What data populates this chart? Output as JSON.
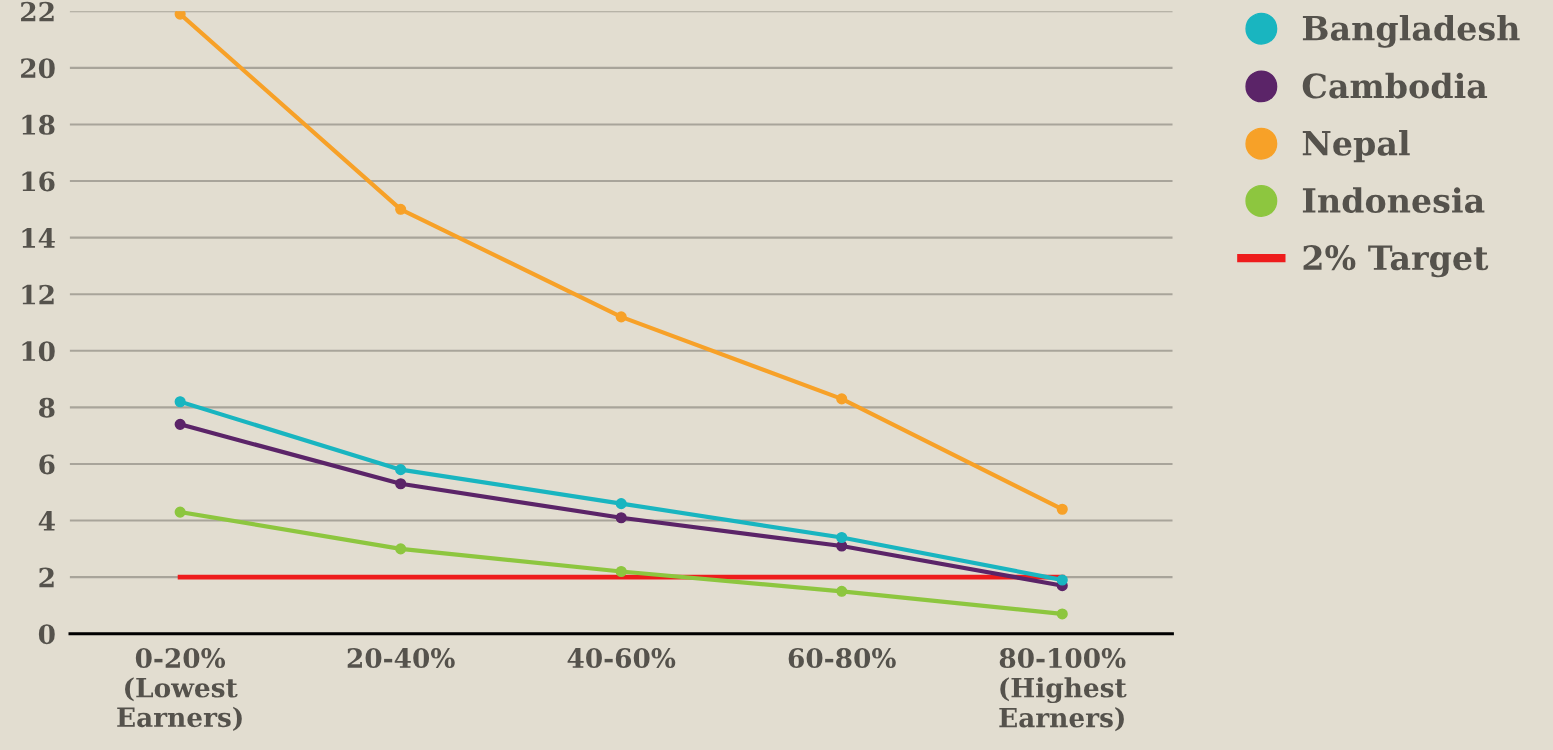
{
  "chart_data": {
    "type": "line",
    "categories": [
      "0-20%\n(Lowest\nEarners)",
      "20-40%",
      "40-60%",
      "60-80%",
      "80-100%\n(Highest\nEarners)"
    ],
    "series": [
      {
        "name": "Bangladesh",
        "color": "#19b5c0",
        "values": [
          8.2,
          5.8,
          4.6,
          3.4,
          1.9
        ]
      },
      {
        "name": "Cambodia",
        "color": "#5b2468",
        "values": [
          7.4,
          5.3,
          4.1,
          3.1,
          1.7
        ]
      },
      {
        "name": "Nepal",
        "color": "#f7a128",
        "values": [
          21.9,
          15.0,
          11.2,
          8.3,
          4.4
        ]
      },
      {
        "name": "Indonesia",
        "color": "#8dc63f",
        "values": [
          4.3,
          3.0,
          2.2,
          1.5,
          0.7
        ]
      },
      {
        "name": "2% Target",
        "color": "#ee1c1c",
        "values": [
          2,
          2,
          2,
          2,
          2
        ],
        "marker": "none"
      }
    ],
    "ylim": [
      0,
      22
    ],
    "yticks": [
      0,
      2,
      4,
      6,
      8,
      10,
      12,
      14,
      16,
      18,
      20,
      22
    ],
    "grid": "y",
    "legend": "top right",
    "marker": "circle"
  }
}
